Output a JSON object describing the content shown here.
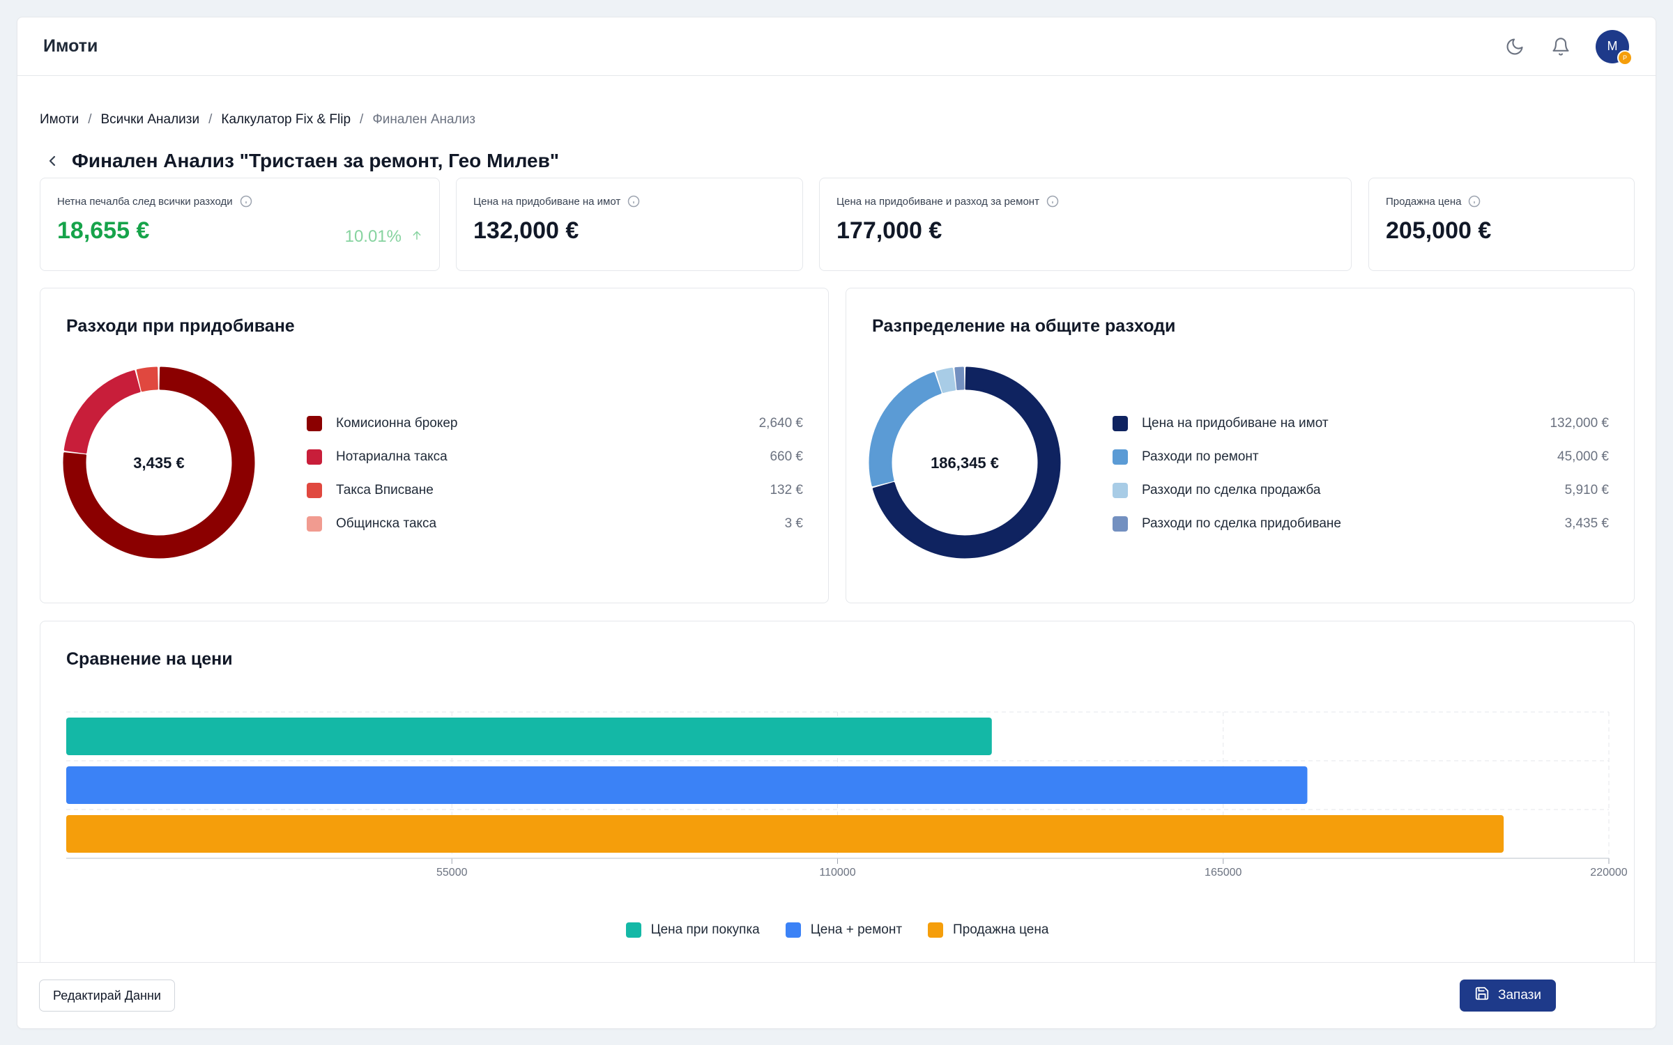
{
  "app": {
    "title": "Имоти"
  },
  "topbar": {
    "avatar_initial": "M",
    "avatar_badge": "P"
  },
  "breadcrumb": [
    "Имоти",
    "Всички Анализи",
    "Калкулатор Fix & Flip",
    "Финален Анализ"
  ],
  "page": {
    "title": "Финален Анализ \"Тристаен за ремонт, Гео Милев\""
  },
  "stats": [
    {
      "label": "Нетна печалба след всички разходи",
      "value": "18,655 €",
      "change": "10.01%",
      "change_direction": "up",
      "value_color": "#16a34a"
    },
    {
      "label": "Цена на придобиване на имот",
      "value": "132,000 €"
    },
    {
      "label": "Цена на придобиване и разход за ремонт",
      "value": "177,000 €"
    },
    {
      "label": "Продажна цена",
      "value": "205,000 €"
    }
  ],
  "acquisition_panel": {
    "title": "Разходи при придобиване",
    "center_label": "3,435 €",
    "items": [
      {
        "label": "Комисионна брокер",
        "value": "2,640 €",
        "amount": 2640,
        "color": "#8b0000"
      },
      {
        "label": "Нотариална такса",
        "value": "660 €",
        "amount": 660,
        "color": "#c81e3a"
      },
      {
        "label": "Такса Вписване",
        "value": "132 €",
        "amount": 132,
        "color": "#e0483f"
      },
      {
        "label": "Общинска такса",
        "value": "3 €",
        "amount": 3,
        "color": "#f19b90"
      }
    ]
  },
  "distribution_panel": {
    "title": "Разпределение на общите разходи",
    "center_label": "186,345 €",
    "items": [
      {
        "label": "Цена на придобиване на имот",
        "value": "132,000 €",
        "amount": 132000,
        "color": "#0f2360"
      },
      {
        "label": "Разходи по ремонт",
        "value": "45,000 €",
        "amount": 45000,
        "color": "#5b9bd5"
      },
      {
        "label": "Разходи по сделка продажба",
        "value": "5,910 €",
        "amount": 5910,
        "color": "#a8cce6"
      },
      {
        "label": "Разходи по сделка придобиване",
        "value": "3,435 €",
        "amount": 3435,
        "color": "#7390c0"
      }
    ]
  },
  "price_comparison": {
    "title": "Сравнение на цени"
  },
  "chart_data": {
    "type": "bar",
    "orientation": "horizontal",
    "title": "Сравнение на цени",
    "series": [
      {
        "name": "Цена при покупка",
        "value": 132000,
        "color": "#14b8a6"
      },
      {
        "name": "Цена + ремонт",
        "value": 177000,
        "color": "#3b82f6"
      },
      {
        "name": "Продажна цена",
        "value": 205000,
        "color": "#f59e0b"
      }
    ],
    "xlim": [
      0,
      220000
    ],
    "xticks": [
      55000,
      110000,
      165000,
      220000
    ],
    "xtick_labels": [
      "55000",
      "110000",
      "165000",
      "220000"
    ],
    "grid": true,
    "legend_position": "bottom"
  },
  "footer": {
    "edit_label": "Редактирай Данни",
    "save_label": "Запази"
  },
  "icons": {
    "theme": "moon-icon",
    "notifications": "bell-icon",
    "back": "chevron-left-icon",
    "info": "info-icon",
    "save": "save-icon",
    "trend": "arrow-up-icon"
  }
}
